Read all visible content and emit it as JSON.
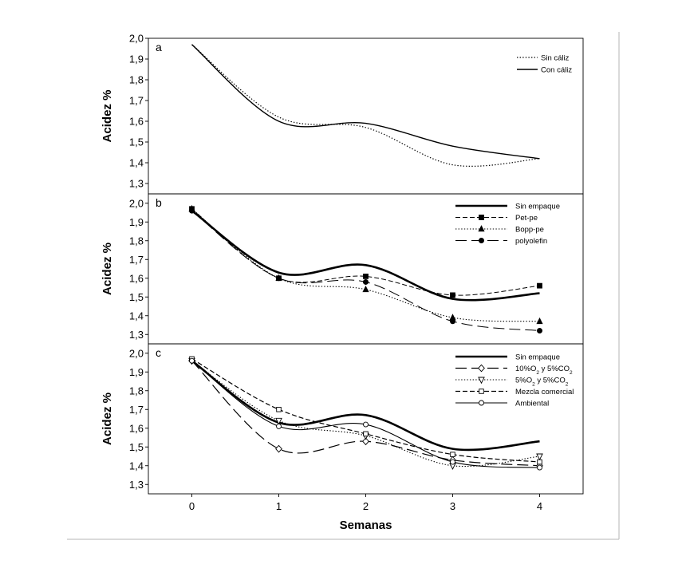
{
  "figure": {
    "xlabel": "Semanas",
    "xticks": [
      0,
      1,
      2,
      3,
      4
    ],
    "xlim": [
      -0.5,
      4.5
    ]
  },
  "chart_data": [
    {
      "type": "line",
      "panel_label": "a",
      "ylabel": "Acidez %",
      "ylim": [
        1.25,
        2.0
      ],
      "yticks": [
        "1,3",
        "1,4",
        "1,5",
        "1,6",
        "1,7",
        "1,8",
        "1,9",
        "2,0"
      ],
      "legend_position": "top-right",
      "x": [
        0,
        1,
        2,
        3,
        4
      ],
      "series": [
        {
          "name": "Sin cáliz",
          "style": "dotted",
          "width": 1.2,
          "marker": "none",
          "values": [
            1.97,
            1.62,
            1.57,
            1.39,
            1.42
          ]
        },
        {
          "name": "Con cáliz",
          "style": "solid",
          "width": 1.4,
          "marker": "none",
          "values": [
            1.97,
            1.6,
            1.59,
            1.48,
            1.42
          ]
        }
      ]
    },
    {
      "type": "line",
      "panel_label": "b",
      "ylabel": "Acidez %",
      "ylim": [
        1.25,
        2.05
      ],
      "yticks": [
        "1,3",
        "1,4",
        "1,5",
        "1,6",
        "1,7",
        "1,8",
        "1,9",
        "2,0"
      ],
      "legend_position": "top-right",
      "x": [
        0,
        1,
        2,
        3,
        4
      ],
      "series": [
        {
          "name": "Sin empaque",
          "style": "solid",
          "width": 2.6,
          "marker": "none",
          "values": [
            1.96,
            1.63,
            1.67,
            1.49,
            1.52
          ]
        },
        {
          "name": "Pet-pe",
          "style": "dash",
          "width": 1,
          "marker": "square",
          "values": [
            1.97,
            1.6,
            1.61,
            1.51,
            1.56
          ]
        },
        {
          "name": "Bopp-pe",
          "style": "dotted",
          "width": 1.1,
          "marker": "triangle",
          "values": [
            1.97,
            1.6,
            1.54,
            1.39,
            1.37
          ]
        },
        {
          "name": "polyolefin",
          "style": "longdash",
          "width": 1,
          "marker": "circle-filled",
          "values": [
            1.96,
            1.6,
            1.58,
            1.37,
            1.32
          ]
        }
      ]
    },
    {
      "type": "line",
      "panel_label": "c",
      "ylabel": "Acidez %",
      "ylim": [
        1.25,
        2.05
      ],
      "yticks": [
        "1,3",
        "1,4",
        "1,5",
        "1,6",
        "1,7",
        "1,8",
        "1,9",
        "2,0"
      ],
      "legend_position": "top-right",
      "x": [
        0,
        1,
        2,
        3,
        4
      ],
      "series": [
        {
          "name": "Sin empaque",
          "label_parts": [
            "Sin empaque"
          ],
          "style": "solid",
          "width": 2.6,
          "marker": "none",
          "values": [
            1.96,
            1.63,
            1.67,
            1.49,
            1.53
          ]
        },
        {
          "name": "10%O2 y 5%CO2",
          "label_parts": [
            "10%O",
            "2",
            " y 5%CO",
            "2"
          ],
          "style": "longdash",
          "width": 1.2,
          "marker": "diamond-open",
          "values": [
            1.96,
            1.49,
            1.53,
            1.43,
            1.4
          ]
        },
        {
          "name": "5%O2 y 5%CO2",
          "label_parts": [
            "5%O",
            "2",
            " y 5%CO",
            "2"
          ],
          "style": "dotted",
          "width": 1.1,
          "marker": "triangle-down-open",
          "values": [
            1.96,
            1.64,
            1.56,
            1.4,
            1.45
          ]
        },
        {
          "name": "Mezcla comercial",
          "label_parts": [
            "Mezcla comercial"
          ],
          "style": "dash",
          "width": 1.2,
          "marker": "square-open",
          "values": [
            1.97,
            1.7,
            1.57,
            1.46,
            1.42
          ]
        },
        {
          "name": "Ambiental",
          "label_parts": [
            "Ambiental"
          ],
          "style": "solid",
          "width": 1.1,
          "marker": "circle-open",
          "values": [
            1.96,
            1.61,
            1.62,
            1.42,
            1.39
          ]
        }
      ]
    }
  ]
}
